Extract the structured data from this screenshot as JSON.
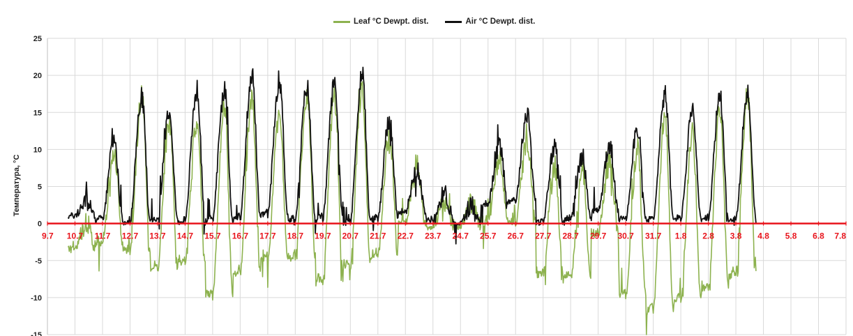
{
  "chart_data": {
    "type": "line",
    "title": "",
    "ylabel": "Температура, °С",
    "xlabel": "",
    "ylim": [
      -15,
      25
    ],
    "yticks": [
      -15,
      -10,
      -5,
      0,
      5,
      10,
      15,
      20,
      25
    ],
    "x_categories": [
      "9.7",
      "10.7",
      "11.7",
      "12.7",
      "13.7",
      "14.7",
      "15.7",
      "16.7",
      "17.7",
      "18.7",
      "19.7",
      "20.7",
      "21.7",
      "22.7",
      "23.7",
      "24.7",
      "25.7",
      "26.7",
      "27.7",
      "28.7",
      "29.7",
      "30.7",
      "31.7",
      "1.8",
      "2.8",
      "3.8",
      "4.8",
      "5.8",
      "6.8",
      "7.8"
    ],
    "xlim_days": [
      0,
      29
    ],
    "grid": true,
    "legend": "top-center",
    "zero_line_color": "#e8141c",
    "tick_label_color": "#e8141c",
    "series": [
      {
        "name": "Leaf °C Dewpt. dist.",
        "color": "#8db24f",
        "daily_max": [
          0,
          10,
          17,
          14,
          14,
          16,
          17,
          15,
          17.5,
          17,
          18,
          12,
          8,
          3,
          3,
          9,
          11,
          7.5,
          7,
          8,
          10,
          15,
          12,
          15,
          17.5
        ],
        "daily_min": [
          -3.5,
          -3,
          -4,
          -6.5,
          -5.5,
          -10,
          -7,
          -5,
          -5,
          -8,
          -6,
          -4.5,
          0,
          -0.5,
          -0.5,
          0,
          0,
          -7,
          -7.5,
          -1.5,
          -10,
          -12,
          -10.5,
          -9,
          -7.2
        ]
      },
      {
        "name": "Air °C Dewpt. dist.",
        "color": "#111111",
        "daily_max": [
          3,
          11,
          17,
          15.5,
          18,
          18,
          20.2,
          19.5,
          18.5,
          19,
          20.3,
          14,
          7.5,
          4,
          2.5,
          10.5,
          15,
          10.5,
          9,
          10.5,
          13,
          17.5,
          15,
          17.3,
          17.5
        ],
        "daily_min": [
          1,
          0.5,
          0,
          0.3,
          0,
          0.3,
          0.5,
          1,
          0.3,
          0.5,
          0,
          0.5,
          1.5,
          0.5,
          0,
          2.5,
          3,
          0,
          0.5,
          1.5,
          0.5,
          0.3,
          0.5,
          0.3,
          0.3
        ]
      }
    ]
  }
}
